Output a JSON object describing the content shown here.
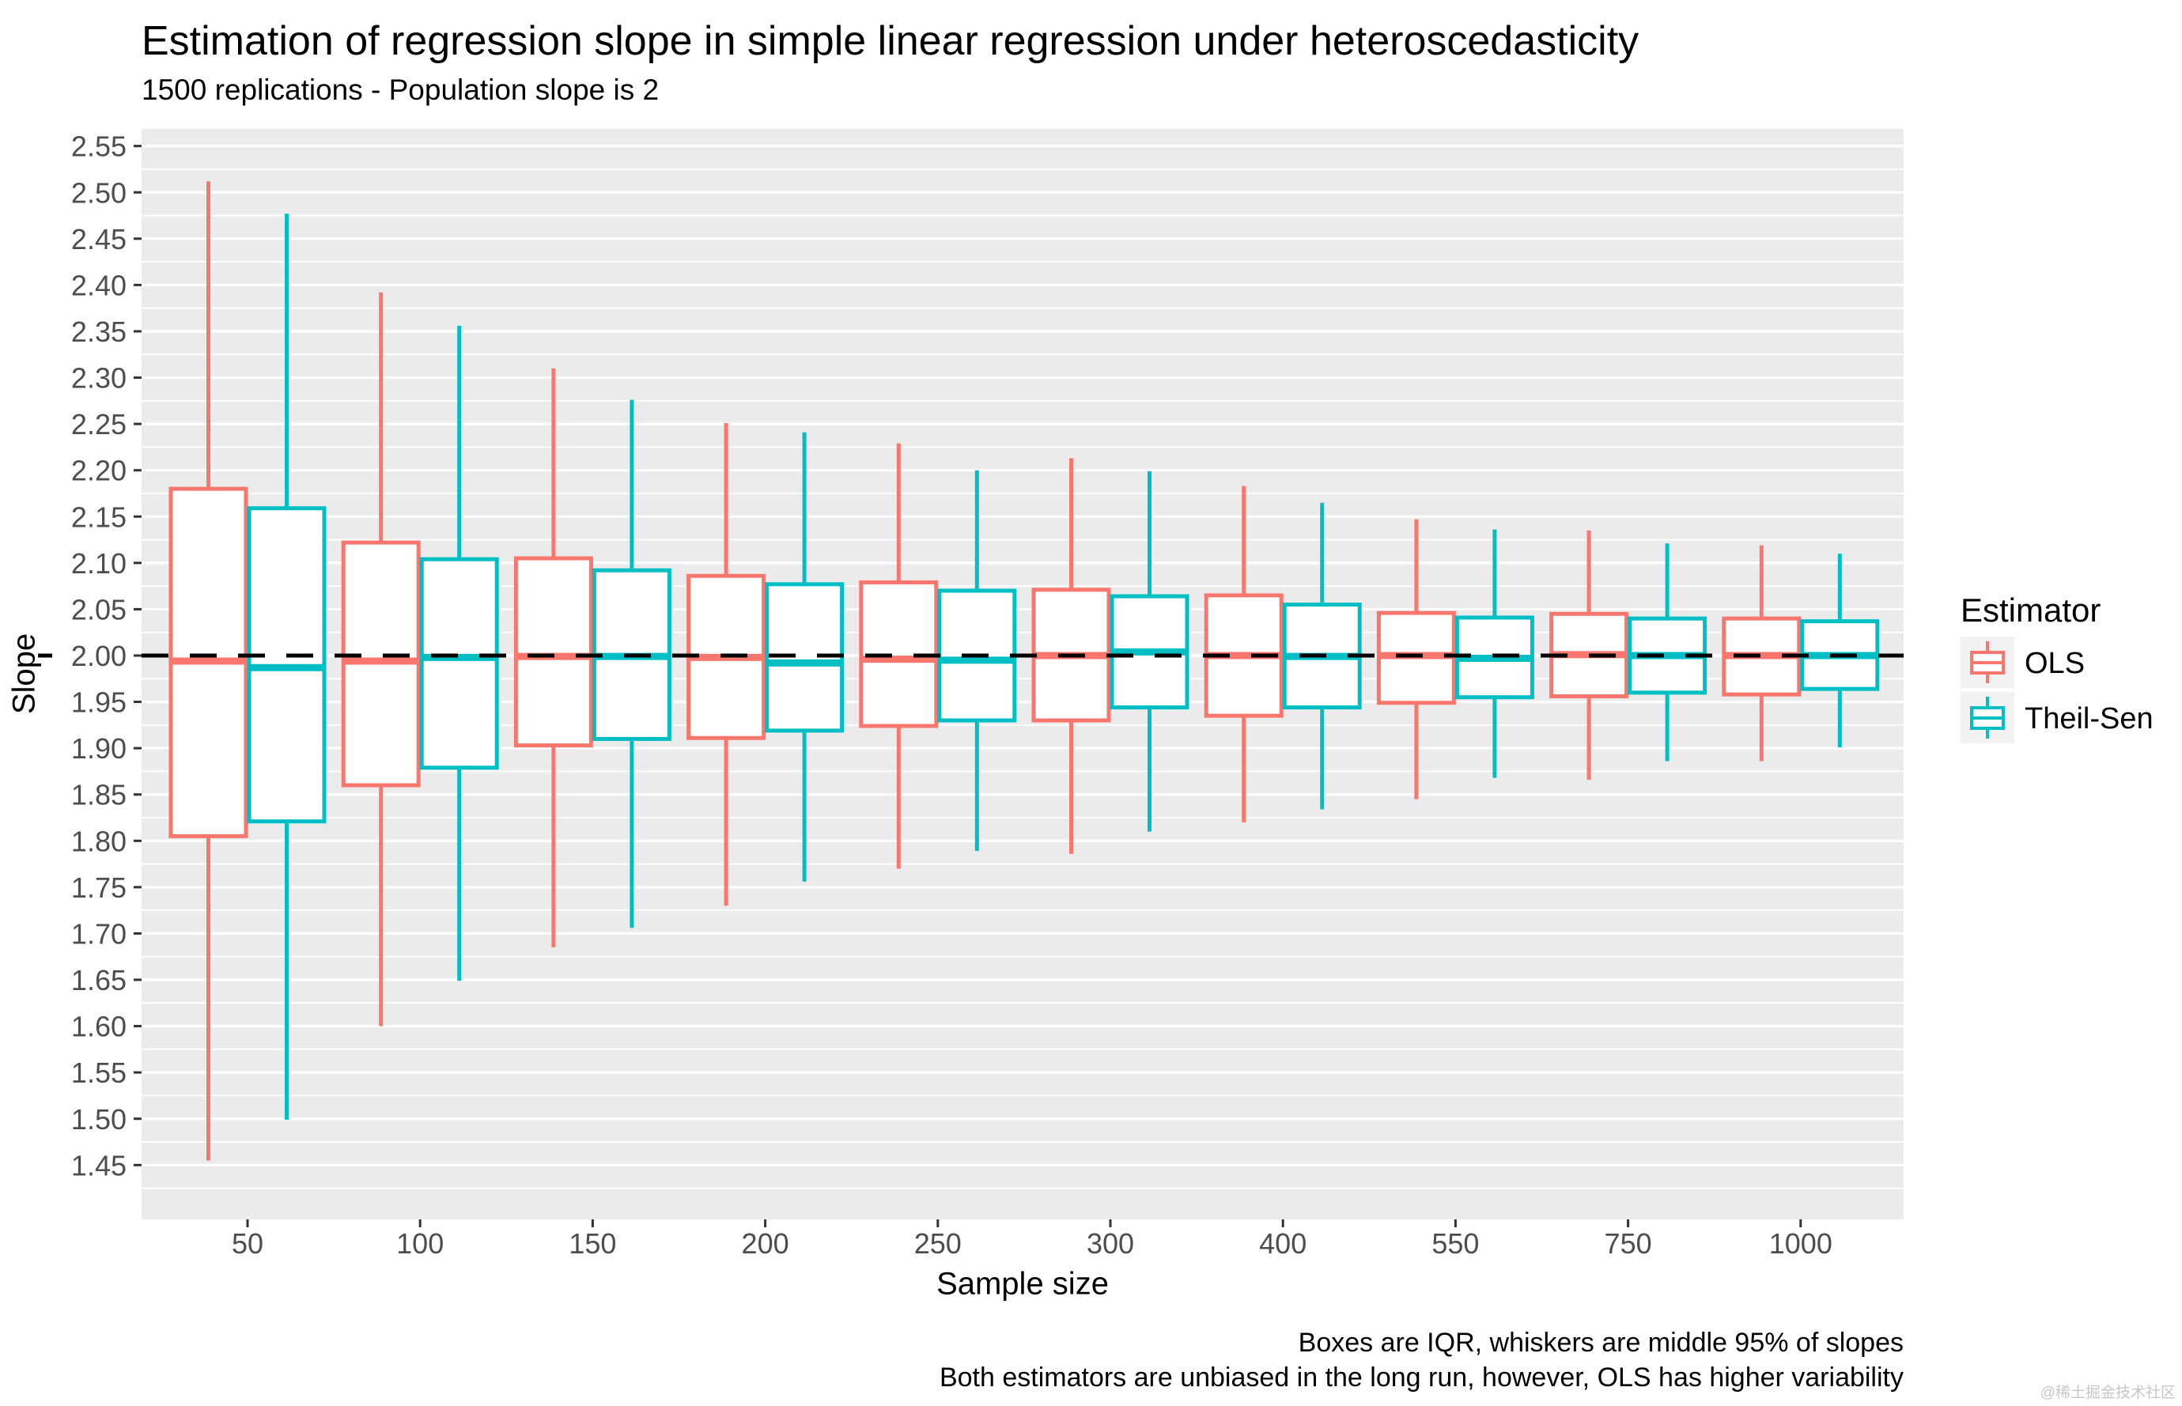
{
  "header": {
    "title": "Estimation of regression slope in simple linear regression under heteroscedasticity",
    "subtitle": "1500 replications - Population slope is 2"
  },
  "caption": {
    "line1": "Boxes are IQR, whiskers are middle 95% of slopes",
    "line2": "Both estimators are unbiased in the long run, however, OLS has higher variability"
  },
  "legend": {
    "title": "Estimator",
    "entries": [
      {
        "label": "OLS",
        "color": "#F8766D"
      },
      {
        "label": "Theil-Sen",
        "color": "#00BFC4"
      }
    ]
  },
  "watermark": "@稀土掘金技术社区",
  "colors": {
    "panel_bg": "#EBEBEB",
    "grid": "#FFFFFF",
    "axis_text": "#4D4D4D",
    "tick_mark": "#333333",
    "reference_line": "#000000",
    "box_fill": "#FFFFFF",
    "legend_key_bg": "#F2F2F2",
    "ols": "#F8766D",
    "theil_sen": "#00BFC4"
  },
  "chart_data": {
    "type": "boxplot",
    "title": "Estimation of regression slope in simple linear regression under heteroscedasticity",
    "subtitle": "1500 replications - Population slope is 2",
    "xlabel": "Sample size",
    "ylabel": "Slope",
    "categories": [
      "50",
      "100",
      "150",
      "200",
      "250",
      "300",
      "400",
      "550",
      "750",
      "1000"
    ],
    "y_ticks": [
      "1.45",
      "1.50",
      "1.55",
      "1.60",
      "1.65",
      "1.70",
      "1.75",
      "1.80",
      "1.85",
      "1.90",
      "1.95",
      "2.00",
      "2.05",
      "2.10",
      "2.15",
      "2.20",
      "2.25",
      "2.30",
      "2.35",
      "2.40",
      "2.45",
      "2.50",
      "2.55"
    ],
    "ylim": [
      1.391,
      2.568
    ],
    "reference_line": 2.0,
    "grid": "major and minor white gridlines on gray panel",
    "legend_position": "right",
    "box_stats_order": [
      "whisker_low",
      "q1",
      "median",
      "q3",
      "whisker_high"
    ],
    "series": [
      {
        "name": "OLS",
        "color": "#F8766D",
        "boxes": [
          [
            1.455,
            1.805,
            1.994,
            2.18,
            2.512
          ],
          [
            1.6,
            1.86,
            1.994,
            2.122,
            2.392
          ],
          [
            1.685,
            1.903,
            1.999,
            2.105,
            2.31
          ],
          [
            1.73,
            1.911,
            1.998,
            2.086,
            2.251
          ],
          [
            1.77,
            1.924,
            1.996,
            2.079,
            2.229
          ],
          [
            1.786,
            1.93,
            2.0,
            2.071,
            2.213
          ],
          [
            1.82,
            1.935,
            2.0,
            2.065,
            2.183
          ],
          [
            1.845,
            1.949,
            2.0,
            2.046,
            2.147
          ],
          [
            1.866,
            1.956,
            2.001,
            2.045,
            2.135
          ],
          [
            1.886,
            1.958,
            2.0,
            2.04,
            2.119
          ]
        ]
      },
      {
        "name": "Theil-Sen",
        "color": "#00BFC4",
        "boxes": [
          [
            1.499,
            1.821,
            1.987,
            2.159,
            2.477
          ],
          [
            1.649,
            1.879,
            1.998,
            2.104,
            2.356
          ],
          [
            1.706,
            1.91,
            1.999,
            2.092,
            2.276
          ],
          [
            1.756,
            1.919,
            1.992,
            2.077,
            2.241
          ],
          [
            1.789,
            1.93,
            1.995,
            2.07,
            2.2
          ],
          [
            1.81,
            1.944,
            2.004,
            2.064,
            2.199
          ],
          [
            1.834,
            1.944,
            1.999,
            2.055,
            2.165
          ],
          [
            1.868,
            1.955,
            1.997,
            2.041,
            2.136
          ],
          [
            1.886,
            1.96,
            2.0,
            2.04,
            2.121
          ],
          [
            1.901,
            1.964,
            2.0,
            2.037,
            2.11
          ]
        ]
      }
    ]
  }
}
